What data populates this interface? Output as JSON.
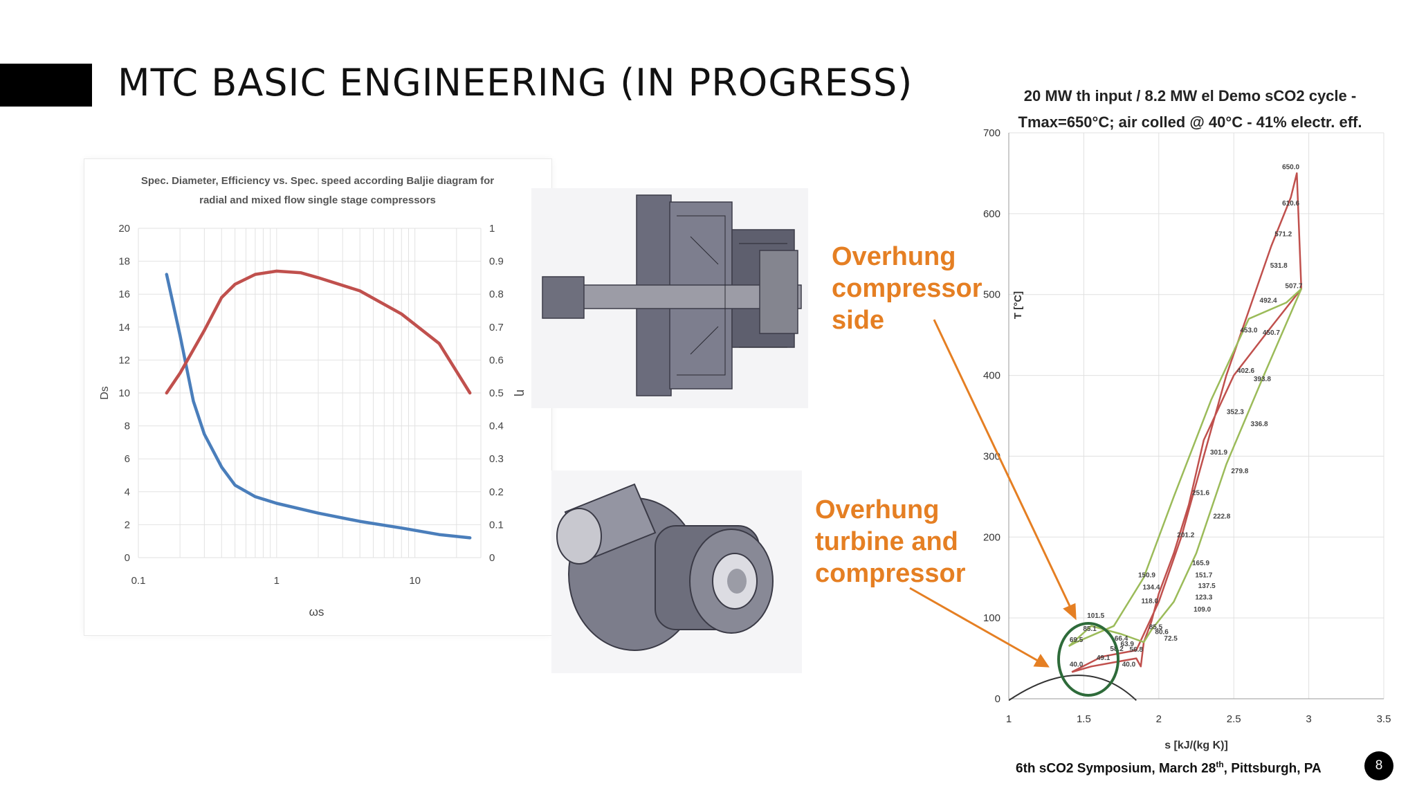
{
  "slide": {
    "title": "MTC BASIC ENGINEERING (IN PROGRESS)",
    "footer_text": "6th sCO2 Symposium, March 28",
    "footer_sup": "th",
    "footer_tail": ", Pittsburgh, PA",
    "page_number": "8"
  },
  "annotations": {
    "compressor": [
      "Overhung",
      "compressor",
      "side"
    ],
    "turbine": [
      "Overhung",
      "turbine and",
      "compressor"
    ],
    "color": "#e57f23"
  },
  "chart_data": [
    {
      "type": "line",
      "title_lines": [
        "Spec. Diameter, Efficiency vs. Spec. speed according Baljie diagram for",
        "radial and mixed flow single stage compressors"
      ],
      "xlabel": "ωs",
      "ylabel": "Ds",
      "y2label": "η",
      "x_scale": "log",
      "xlim": [
        0.1,
        30
      ],
      "x_ticks": [
        "0.1",
        "1",
        "10"
      ],
      "ylim": [
        0,
        20
      ],
      "y_ticks": [
        "0",
        "2",
        "4",
        "6",
        "8",
        "10",
        "12",
        "14",
        "16",
        "18",
        "20"
      ],
      "y2lim": [
        0,
        1
      ],
      "y2_ticks": [
        "0",
        "0.1",
        "0.2",
        "0.3",
        "0.4",
        "0.5",
        "0.6",
        "0.7",
        "0.8",
        "0.9",
        "1"
      ],
      "grid": true,
      "series": [
        {
          "axis": "left",
          "color": "#4a7ebb",
          "x": [
            0.16,
            0.2,
            0.25,
            0.3,
            0.4,
            0.5,
            0.7,
            1.0,
            2,
            4,
            8,
            15,
            25
          ],
          "y": [
            17.2,
            13.5,
            9.5,
            7.5,
            5.5,
            4.4,
            3.7,
            3.3,
            2.7,
            2.2,
            1.8,
            1.4,
            1.2
          ]
        },
        {
          "axis": "right",
          "color": "#c0504d",
          "x": [
            0.16,
            0.2,
            0.3,
            0.4,
            0.5,
            0.7,
            1.0,
            1.5,
            2,
            4,
            8,
            15,
            25
          ],
          "y": [
            0.5,
            0.56,
            0.69,
            0.79,
            0.83,
            0.86,
            0.87,
            0.865,
            0.85,
            0.81,
            0.74,
            0.65,
            0.5
          ]
        }
      ]
    },
    {
      "type": "line",
      "title_lines": [
        "20 MW th input / 8.2 MW el Demo sCO2 cycle -",
        "Tmax=650°C; air colled @ 40°C - 41% electr. eff."
      ],
      "xlabel": "s [kJ/(kg K)]",
      "ylabel": "T [°C]",
      "xlim": [
        1,
        3.5
      ],
      "x_ticks": [
        "1",
        "1.5",
        "2",
        "2.5",
        "3",
        "3.5"
      ],
      "ylim": [
        0,
        700
      ],
      "y_ticks": [
        "0",
        "100",
        "200",
        "300",
        "400",
        "500",
        "600",
        "700"
      ],
      "grid": true,
      "series": [
        {
          "name": "",
          "color": "#c0504d",
          "x": [
            1.42,
            1.62,
            1.85,
            2.0,
            2.15,
            2.3,
            2.45,
            2.6,
            2.75,
            2.88,
            2.92,
            2.95,
            2.75,
            2.5,
            2.3,
            2.2,
            2.1,
            2.0,
            1.95,
            1.9,
            1.88,
            1.85,
            1.7,
            1.55,
            1.42
          ],
          "y": [
            33,
            52,
            60,
            120,
            200,
            300,
            400,
            480,
            560,
            620,
            650,
            507,
            460,
            400,
            320,
            240,
            180,
            130,
            95,
            70,
            40,
            50,
            45,
            40,
            33
          ]
        },
        {
          "name": "",
          "color": "#9bbb59",
          "x": [
            1.4,
            1.45,
            1.7,
            1.9,
            2.1,
            2.35,
            2.6,
            2.85,
            2.95,
            2.7,
            2.45,
            2.25,
            2.1,
            1.95,
            1.9,
            1.75,
            1.55,
            1.4
          ],
          "y": [
            65,
            70,
            90,
            150,
            250,
            370,
            470,
            490,
            507,
            400,
            290,
            180,
            120,
            85,
            70,
            80,
            90,
            65
          ]
        }
      ],
      "point_labels": [
        "650.0",
        "610.6",
        "571.2",
        "531.8",
        "507.7",
        "492.4",
        "453.0",
        "450.7",
        "402.6",
        "393.8",
        "352.3",
        "336.8",
        "301.9",
        "279.8",
        "251.6",
        "222.8",
        "201.2",
        "165.9",
        "151.7",
        "150.9",
        "137.5",
        "134.4",
        "123.3",
        "118.0",
        "109.0",
        "101.5",
        "85.5",
        "85.1",
        "80.6",
        "72.5",
        "69.5",
        "66.4",
        "63.9",
        "58.2",
        "56.8",
        "49.1",
        "40.0",
        "40.0"
      ]
    }
  ]
}
